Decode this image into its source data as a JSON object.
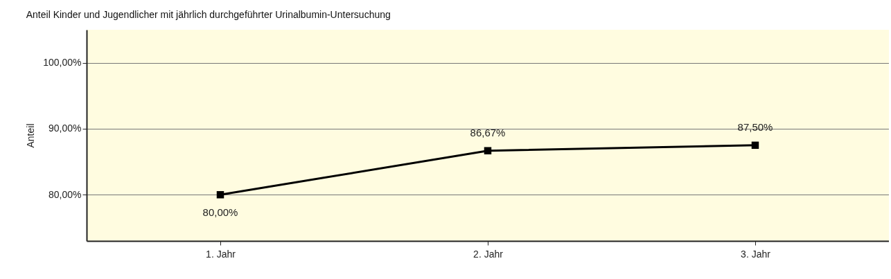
{
  "chart_data": {
    "type": "line",
    "title": "Anteil Kinder und Jugendlicher mit jährlich durchgeführter Urinalbumin-Untersuchung",
    "ylabel": "Anteil",
    "categories": [
      "1. Jahr",
      "2. Jahr",
      "3. Jahr"
    ],
    "series": [
      {
        "color": "#000000",
        "values": [
          80,
          86.67,
          87.5
        ],
        "value_labels": [
          "80,00%",
          "86,67%",
          "87,50%"
        ]
      }
    ],
    "ylim": [
      73,
      105
    ],
    "yticks": [
      {
        "value": 80,
        "label": "80,00%"
      },
      {
        "value": 90,
        "label": "90,00%"
      },
      {
        "value": 100,
        "label": "100,00%"
      }
    ],
    "grid": "y",
    "marker": "square",
    "line_style": "solid"
  }
}
